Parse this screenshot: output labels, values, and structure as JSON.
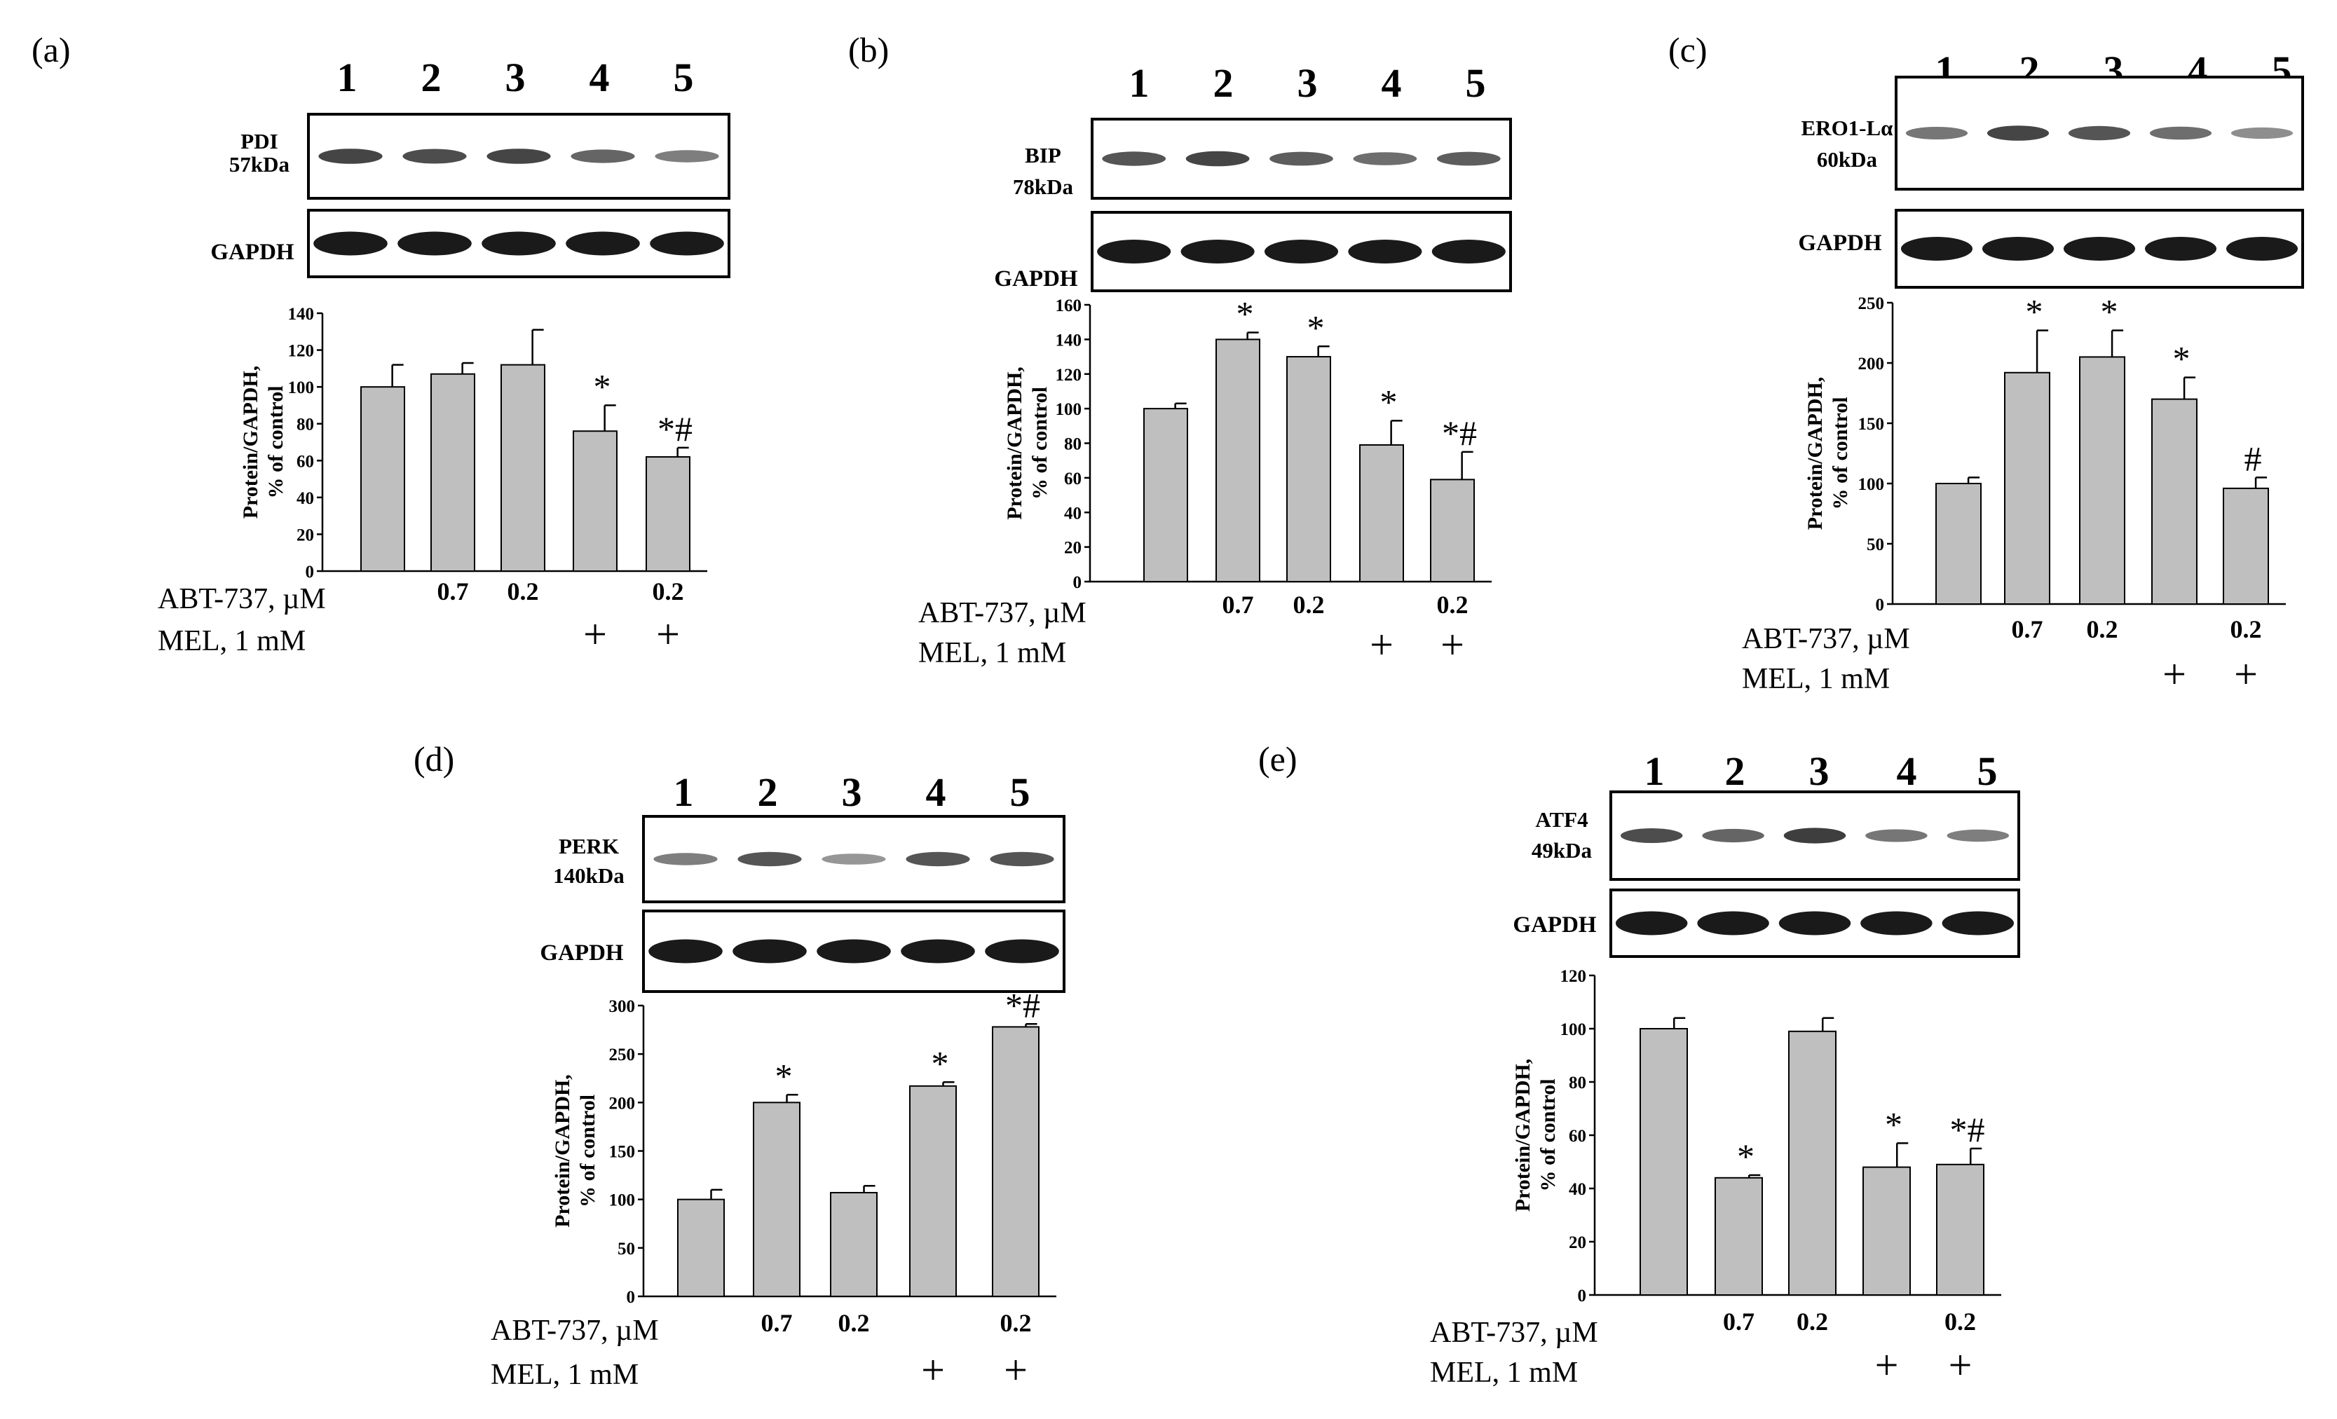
{
  "rows": {
    "abt_label": "ABT-737, µM",
    "mel_label": "MEL, 1 mM"
  },
  "gapdh_label": "GAPDH",
  "lanes": [
    "1",
    "2",
    "3",
    "4",
    "5"
  ],
  "doses": [
    "",
    "0.7",
    "0.2",
    "",
    "0.2"
  ],
  "mel": [
    "",
    "",
    "",
    "+",
    "+"
  ],
  "chart_data": [
    {
      "type": "bar",
      "panel": "(a)",
      "protein": "PDI",
      "mw": "57kDa",
      "categories": [
        "1",
        "2",
        "3",
        "4",
        "5"
      ],
      "values": [
        100,
        107,
        112,
        76,
        62
      ],
      "errors": [
        12,
        6,
        19,
        14,
        5
      ],
      "significance": [
        "",
        "",
        "",
        "*",
        "*#"
      ],
      "ylabel": [
        "Protein/GAPDH,",
        "% of control"
      ],
      "ylim": [
        0,
        140
      ],
      "yticks": [
        0,
        20,
        40,
        60,
        80,
        100,
        120,
        140
      ],
      "band_intensity": [
        0.8,
        0.75,
        0.8,
        0.6,
        0.45
      ]
    },
    {
      "type": "bar",
      "panel": "(b)",
      "protein": "BIP",
      "mw": "78kDa",
      "categories": [
        "1",
        "2",
        "3",
        "4",
        "5"
      ],
      "values": [
        100,
        140,
        130,
        79,
        59
      ],
      "errors": [
        3,
        4,
        6,
        14,
        16
      ],
      "significance": [
        "",
        "*",
        "*",
        "*",
        "*#"
      ],
      "ylabel": [
        "Protein/GAPDH,",
        "% of control"
      ],
      "ylim": [
        0,
        160
      ],
      "yticks": [
        0,
        20,
        40,
        60,
        80,
        100,
        120,
        140,
        160
      ],
      "band_intensity": [
        0.7,
        0.8,
        0.65,
        0.55,
        0.65
      ]
    },
    {
      "type": "bar",
      "panel": "(c)",
      "protein": "ERO1-Lα",
      "mw": "60kDa",
      "categories": [
        "1",
        "2",
        "3",
        "4",
        "5"
      ],
      "values": [
        100,
        192,
        205,
        170,
        96
      ],
      "errors": [
        5,
        35,
        22,
        18,
        9
      ],
      "significance": [
        "",
        "*",
        "*",
        "*",
        "#"
      ],
      "ylabel": [
        "Protein/GAPDH,",
        "% of control"
      ],
      "ylim": [
        0,
        250
      ],
      "yticks": [
        0,
        50,
        100,
        150,
        200,
        250
      ],
      "band_intensity": [
        0.5,
        0.8,
        0.7,
        0.55,
        0.35
      ]
    },
    {
      "type": "bar",
      "panel": "(d)",
      "protein": "PERK",
      "mw": "140kDa",
      "categories": [
        "1",
        "2",
        "3",
        "4",
        "5"
      ],
      "values": [
        100,
        200,
        107,
        217,
        278
      ],
      "errors": [
        10,
        8,
        7,
        4,
        3
      ],
      "significance": [
        "",
        "*",
        "",
        "*",
        "*#"
      ],
      "ylabel": [
        "Protein/GAPDH,",
        "% of control"
      ],
      "ylim": [
        0,
        300
      ],
      "yticks": [
        0,
        50,
        100,
        150,
        200,
        250,
        300
      ],
      "band_intensity": [
        0.45,
        0.7,
        0.3,
        0.7,
        0.7
      ]
    },
    {
      "type": "bar",
      "panel": "(e)",
      "protein": "ATF4",
      "mw": "49kDa",
      "categories": [
        "1",
        "2",
        "3",
        "4",
        "5"
      ],
      "values": [
        100,
        44,
        99,
        48,
        49
      ],
      "errors": [
        4,
        1,
        5,
        9,
        6
      ],
      "significance": [
        "",
        "*",
        "",
        "*",
        "*#"
      ],
      "ylabel": [
        "Protein/GAPDH,",
        "% of control"
      ],
      "ylim": [
        0,
        120
      ],
      "yticks": [
        0,
        20,
        40,
        60,
        80,
        100,
        120
      ],
      "band_intensity": [
        0.75,
        0.6,
        0.85,
        0.5,
        0.45
      ]
    }
  ]
}
